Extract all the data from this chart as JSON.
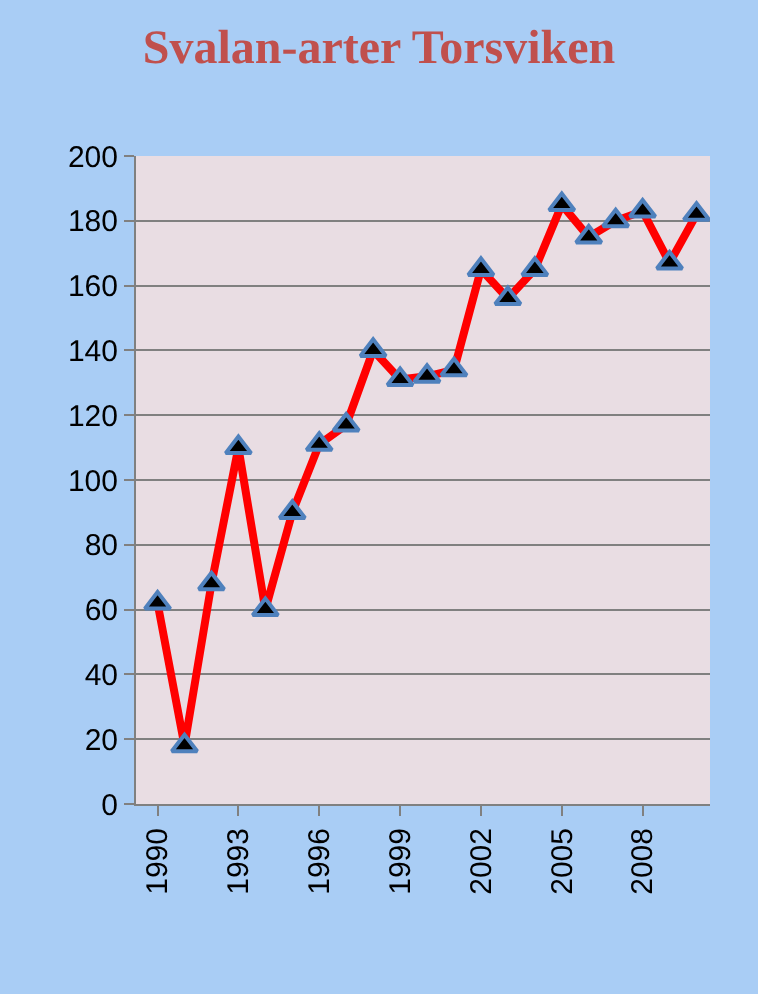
{
  "chart_data": {
    "type": "line",
    "title": "Svalan-arter Torsviken",
    "categories": [
      "1990",
      null,
      null,
      "1993",
      null,
      null,
      "1996",
      null,
      null,
      "1999",
      null,
      null,
      "2002",
      null,
      null,
      "2005",
      null,
      null,
      "2008",
      null,
      null
    ],
    "series": [
      {
        "color": "#ff0000",
        "values": [
          62,
          18,
          68,
          110,
          60,
          90,
          111,
          117,
          140,
          131,
          132,
          134,
          165,
          156,
          165,
          185,
          175,
          180,
          183,
          167,
          182
        ]
      }
    ],
    "ylim": [
      0,
      200
    ],
    "yticks": [
      0,
      20,
      40,
      60,
      80,
      100,
      120,
      140,
      160,
      180,
      200
    ],
    "grid": "y",
    "legend": false,
    "marker": "triangle",
    "line_style": "solid"
  }
}
